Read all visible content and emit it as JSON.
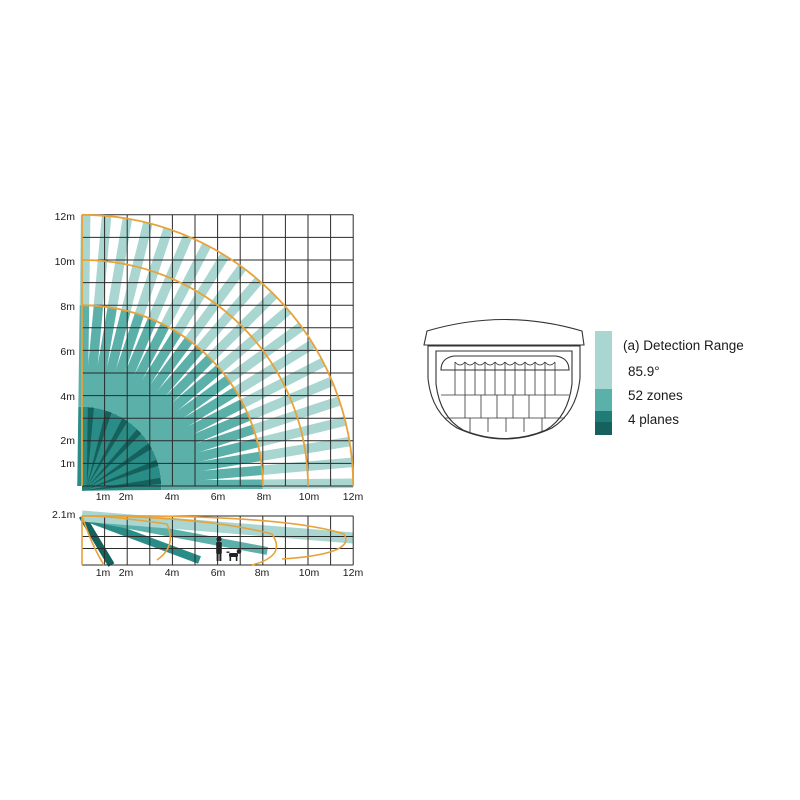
{
  "top_view": {
    "y_ticks": [
      "12m",
      "10m",
      "8m",
      "6m",
      "4m",
      "2m",
      "1m"
    ],
    "x_ticks": [
      "1m",
      "2m",
      "4m",
      "6m",
      "8m",
      "10m",
      "12m"
    ]
  },
  "side_view": {
    "height_label": "2.1m",
    "x_ticks": [
      "1m",
      "2m",
      "4m",
      "6m",
      "8m",
      "10m",
      "12m"
    ]
  },
  "legend": {
    "title": "(a) Detection Range",
    "angle": "85.9°",
    "zones": "52 zones",
    "planes": "4 planes",
    "swatch_colors": [
      "#a9d6d1",
      "#5bb1aa",
      "#1f7c77"
    ]
  },
  "colors": {
    "grid": "#2a2a2a",
    "arc": "#e8a23a",
    "plane_light": "#a9d6d1",
    "plane_mid": "#5bb1aa",
    "plane_dark": "#2a8c86",
    "plane_darkest": "#14615d"
  },
  "detection": {
    "range_m": 12,
    "plane_limits_m": [
      3.5,
      8,
      10,
      12
    ],
    "rays": 21
  }
}
